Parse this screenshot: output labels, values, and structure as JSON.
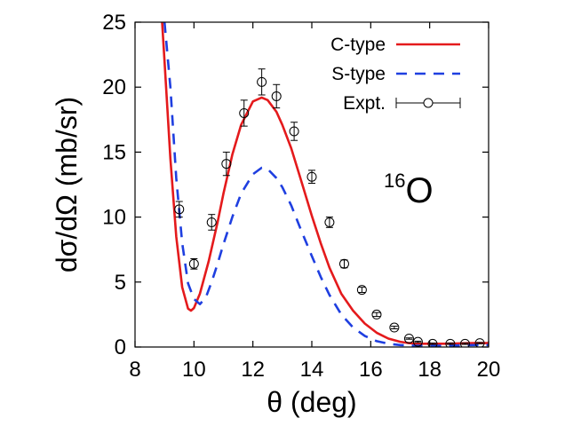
{
  "chart_data": {
    "type": "line",
    "xlabel": "θ (deg)",
    "ylabel": "dσ/dΩ (mb/sr)",
    "xlim": [
      8,
      20
    ],
    "ylim": [
      0,
      25
    ],
    "xticks": [
      8,
      10,
      12,
      14,
      16,
      18,
      20
    ],
    "yticks": [
      0,
      5,
      10,
      15,
      20,
      25
    ],
    "grid": false,
    "legend_position": "top-right",
    "annotation": {
      "mass_number": "16",
      "element": "O"
    },
    "series": [
      {
        "name": "C-type",
        "style": "solid",
        "color": "#e41a1c",
        "x": [
          8.92,
          9.0,
          9.2,
          9.4,
          9.6,
          9.8,
          9.9,
          10.0,
          10.2,
          10.5,
          10.8,
          11.0,
          11.3,
          11.6,
          12.0,
          12.3,
          12.5,
          12.8,
          13.0,
          13.3,
          13.6,
          14.0,
          14.3,
          14.6,
          15.0,
          15.4,
          15.8,
          16.2,
          16.6,
          17.0,
          17.3,
          17.6,
          18.0,
          18.5,
          19.0,
          19.5,
          20.0
        ],
        "y": [
          25.0,
          22.0,
          14.5,
          8.5,
          4.6,
          2.95,
          2.8,
          3.0,
          4.1,
          6.6,
          9.6,
          11.8,
          14.8,
          17.1,
          18.9,
          19.2,
          19.0,
          18.1,
          17.1,
          15.3,
          13.1,
          10.1,
          8.0,
          6.1,
          4.1,
          2.8,
          1.8,
          1.1,
          0.65,
          0.4,
          0.3,
          0.25,
          0.25,
          0.25,
          0.28,
          0.3,
          0.3
        ]
      },
      {
        "name": "S-type",
        "style": "dashed",
        "color": "#1f3fe0",
        "x": [
          9.0,
          9.2,
          9.4,
          9.6,
          9.8,
          10.0,
          10.2,
          10.4,
          10.6,
          10.8,
          11.0,
          11.3,
          11.6,
          12.0,
          12.3,
          12.5,
          12.8,
          13.0,
          13.3,
          13.6,
          14.0,
          14.3,
          14.6,
          15.0,
          15.4,
          15.8,
          16.2,
          16.6,
          17.0,
          17.5,
          18.0,
          18.5,
          19.0,
          19.5,
          20.0
        ],
        "y": [
          25.0,
          20.0,
          13.0,
          8.0,
          4.9,
          3.7,
          3.3,
          3.8,
          5.0,
          6.4,
          7.9,
          10.0,
          11.8,
          13.3,
          13.8,
          13.7,
          13.0,
          12.3,
          10.9,
          9.2,
          7.0,
          5.4,
          4.0,
          2.5,
          1.5,
          0.85,
          0.45,
          0.25,
          0.15,
          0.1,
          0.1,
          0.1,
          0.12,
          0.15,
          0.15
        ]
      },
      {
        "name": "Expt.",
        "style": "points",
        "color": "#000000",
        "x": [
          9.5,
          10.0,
          10.6,
          11.1,
          11.7,
          12.3,
          12.8,
          13.4,
          14.0,
          14.6,
          15.1,
          15.7,
          16.2,
          16.8,
          17.3,
          17.6,
          18.1,
          18.7,
          19.2,
          19.7
        ],
        "y": [
          10.6,
          6.4,
          9.6,
          14.1,
          18.0,
          20.4,
          19.3,
          16.6,
          13.1,
          9.6,
          6.4,
          4.4,
          2.5,
          1.5,
          0.65,
          0.4,
          0.25,
          0.25,
          0.25,
          0.3
        ],
        "err": [
          0.6,
          0.4,
          0.6,
          0.9,
          1.0,
          1.0,
          0.9,
          0.7,
          0.5,
          0.4,
          0.3,
          0.2,
          0.15,
          0.1,
          0.05,
          0.05,
          0.05,
          0.05,
          0.05,
          0.05
        ]
      }
    ]
  }
}
